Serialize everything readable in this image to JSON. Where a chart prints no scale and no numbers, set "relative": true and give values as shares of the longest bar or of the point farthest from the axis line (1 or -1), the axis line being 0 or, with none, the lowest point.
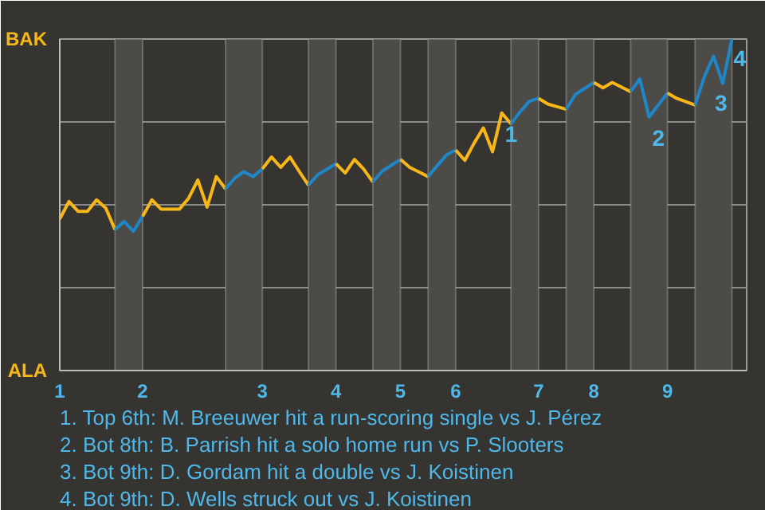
{
  "chart_data": {
    "type": "line",
    "relative": true,
    "categories": [
      "1",
      null,
      null,
      null,
      null,
      null,
      null,
      null,
      null,
      "2",
      null,
      null,
      null,
      null,
      null,
      null,
      null,
      null,
      null,
      null,
      null,
      null,
      "3",
      null,
      null,
      null,
      null,
      null,
      null,
      null,
      "4",
      null,
      null,
      null,
      null,
      null,
      null,
      "5",
      null,
      null,
      null,
      null,
      null,
      "6",
      null,
      null,
      null,
      null,
      null,
      null,
      null,
      null,
      "7",
      null,
      null,
      null,
      null,
      null,
      "8",
      null,
      null,
      null,
      null,
      null,
      null,
      null,
      "9",
      null,
      null,
      null,
      null,
      null,
      null,
      null
    ],
    "series": [
      {
        "color": "#f7b719",
        "values": [
          0.457,
          0.51,
          0.48,
          0.48,
          0.515,
          0.49,
          0.425,
          null,
          null,
          null,
          null,
          null,
          null,
          null,
          null,
          null,
          null,
          null,
          null,
          null,
          null,
          null,
          null,
          null,
          null,
          null,
          null,
          null,
          null,
          null,
          null,
          null,
          null,
          null,
          null,
          null,
          null,
          null,
          null,
          null,
          null,
          null,
          null,
          null,
          null,
          null,
          null,
          null,
          null,
          null,
          null,
          null,
          null,
          null,
          null,
          null,
          null,
          null,
          null,
          null,
          null,
          null,
          null,
          null,
          null,
          null,
          null,
          null,
          null,
          null,
          null,
          null,
          null,
          null
        ]
      },
      {
        "color": "#1f86c7",
        "values": [
          null,
          null,
          null,
          null,
          null,
          null,
          0.425,
          0.45,
          0.42,
          0.465,
          null,
          null,
          null,
          null,
          null,
          null,
          null,
          null,
          null,
          null,
          null,
          null,
          null,
          null,
          null,
          null,
          null,
          null,
          null,
          null,
          null,
          null,
          null,
          null,
          null,
          null,
          null,
          null,
          null,
          null,
          null,
          null,
          null,
          null,
          null,
          null,
          null,
          null,
          null,
          null,
          null,
          null,
          null,
          null,
          null,
          null,
          null,
          null,
          null,
          null,
          null,
          null,
          null,
          null,
          null,
          null,
          null,
          null,
          null,
          null,
          null,
          null,
          null,
          null
        ]
      },
      {
        "color": "#f7b719",
        "values": [
          null,
          null,
          null,
          null,
          null,
          null,
          null,
          null,
          null,
          0.465,
          0.515,
          0.487,
          0.487,
          0.487,
          0.52,
          0.575,
          0.493,
          0.585,
          0.548,
          null,
          null,
          null,
          null,
          null,
          null,
          null,
          null,
          null,
          null,
          null,
          null,
          null,
          null,
          null,
          null,
          null,
          null,
          null,
          null,
          null,
          null,
          null,
          null,
          null,
          null,
          null,
          null,
          null,
          null,
          null,
          null,
          null,
          null,
          null,
          null,
          null,
          null,
          null,
          null,
          null,
          null,
          null,
          null,
          null,
          null,
          null,
          null,
          null,
          null,
          null,
          null,
          null,
          null,
          null
        ]
      },
      {
        "color": "#1f86c7",
        "values": [
          null,
          null,
          null,
          null,
          null,
          null,
          null,
          null,
          null,
          null,
          null,
          null,
          null,
          null,
          null,
          null,
          null,
          null,
          0.548,
          0.58,
          0.6,
          0.585,
          0.608,
          null,
          null,
          null,
          null,
          null,
          null,
          null,
          null,
          null,
          null,
          null,
          null,
          null,
          null,
          null,
          null,
          null,
          null,
          null,
          null,
          null,
          null,
          null,
          null,
          null,
          null,
          null,
          null,
          null,
          null,
          null,
          null,
          null,
          null,
          null,
          null,
          null,
          null,
          null,
          null,
          null,
          null,
          null,
          null,
          null,
          null,
          null,
          null,
          null,
          null,
          null
        ]
      },
      {
        "color": "#f7b719",
        "values": [
          null,
          null,
          null,
          null,
          null,
          null,
          null,
          null,
          null,
          null,
          null,
          null,
          null,
          null,
          null,
          null,
          null,
          null,
          null,
          null,
          null,
          null,
          0.608,
          0.644,
          0.613,
          0.644,
          0.601,
          0.559,
          null,
          null,
          null,
          null,
          null,
          null,
          null,
          null,
          null,
          null,
          null,
          null,
          null,
          null,
          null,
          null,
          null,
          null,
          null,
          null,
          null,
          null,
          null,
          null,
          null,
          null,
          null,
          null,
          null,
          null,
          null,
          null,
          null,
          null,
          null,
          null,
          null,
          null,
          null,
          null,
          null,
          null,
          null,
          null,
          null,
          null
        ]
      },
      {
        "color": "#1f86c7",
        "values": [
          null,
          null,
          null,
          null,
          null,
          null,
          null,
          null,
          null,
          null,
          null,
          null,
          null,
          null,
          null,
          null,
          null,
          null,
          null,
          null,
          null,
          null,
          null,
          null,
          null,
          null,
          null,
          0.559,
          0.59,
          0.607,
          0.624,
          null,
          null,
          null,
          null,
          null,
          null,
          null,
          null,
          null,
          null,
          null,
          null,
          null,
          null,
          null,
          null,
          null,
          null,
          null,
          null,
          null,
          null,
          null,
          null,
          null,
          null,
          null,
          null,
          null,
          null,
          null,
          null,
          null,
          null,
          null,
          null,
          null,
          null,
          null,
          null,
          null,
          null,
          null
        ]
      },
      {
        "color": "#f7b719",
        "values": [
          null,
          null,
          null,
          null,
          null,
          null,
          null,
          null,
          null,
          null,
          null,
          null,
          null,
          null,
          null,
          null,
          null,
          null,
          null,
          null,
          null,
          null,
          null,
          null,
          null,
          null,
          null,
          null,
          null,
          null,
          0.624,
          0.596,
          0.637,
          0.608,
          0.569,
          null,
          null,
          null,
          null,
          null,
          null,
          null,
          null,
          null,
          null,
          null,
          null,
          null,
          null,
          null,
          null,
          null,
          null,
          null,
          null,
          null,
          null,
          null,
          null,
          null,
          null,
          null,
          null,
          null,
          null,
          null,
          null,
          null,
          null,
          null,
          null,
          null,
          null,
          null
        ]
      },
      {
        "color": "#1f86c7",
        "values": [
          null,
          null,
          null,
          null,
          null,
          null,
          null,
          null,
          null,
          null,
          null,
          null,
          null,
          null,
          null,
          null,
          null,
          null,
          null,
          null,
          null,
          null,
          null,
          null,
          null,
          null,
          null,
          null,
          null,
          null,
          null,
          null,
          null,
          null,
          0.569,
          0.601,
          0.619,
          0.637,
          null,
          null,
          null,
          null,
          null,
          null,
          null,
          null,
          null,
          null,
          null,
          null,
          null,
          null,
          null,
          null,
          null,
          null,
          null,
          null,
          null,
          null,
          null,
          null,
          null,
          null,
          null,
          null,
          null,
          null,
          null,
          null,
          null,
          null,
          null,
          null
        ]
      },
      {
        "color": "#f7b719",
        "values": [
          null,
          null,
          null,
          null,
          null,
          null,
          null,
          null,
          null,
          null,
          null,
          null,
          null,
          null,
          null,
          null,
          null,
          null,
          null,
          null,
          null,
          null,
          null,
          null,
          null,
          null,
          null,
          null,
          null,
          null,
          null,
          null,
          null,
          null,
          null,
          null,
          null,
          0.637,
          0.613,
          0.599,
          0.585,
          null,
          null,
          null,
          null,
          null,
          null,
          null,
          null,
          null,
          null,
          null,
          null,
          null,
          null,
          null,
          null,
          null,
          null,
          null,
          null,
          null,
          null,
          null,
          null,
          null,
          null,
          null,
          null,
          null,
          null,
          null,
          null,
          null
        ]
      },
      {
        "color": "#1f86c7",
        "values": [
          null,
          null,
          null,
          null,
          null,
          null,
          null,
          null,
          null,
          null,
          null,
          null,
          null,
          null,
          null,
          null,
          null,
          null,
          null,
          null,
          null,
          null,
          null,
          null,
          null,
          null,
          null,
          null,
          null,
          null,
          null,
          null,
          null,
          null,
          null,
          null,
          null,
          null,
          null,
          null,
          0.585,
          0.618,
          0.65,
          0.665,
          null,
          null,
          null,
          null,
          null,
          null,
          null,
          null,
          null,
          null,
          null,
          null,
          null,
          null,
          null,
          null,
          null,
          null,
          null,
          null,
          null,
          null,
          null,
          null,
          null,
          null,
          null,
          null,
          null,
          null
        ]
      },
      {
        "color": "#f7b719",
        "values": [
          null,
          null,
          null,
          null,
          null,
          null,
          null,
          null,
          null,
          null,
          null,
          null,
          null,
          null,
          null,
          null,
          null,
          null,
          null,
          null,
          null,
          null,
          null,
          null,
          null,
          null,
          null,
          null,
          null,
          null,
          null,
          null,
          null,
          null,
          null,
          null,
          null,
          null,
          null,
          null,
          null,
          null,
          null,
          0.665,
          0.634,
          0.686,
          0.732,
          0.66,
          0.777,
          0.744,
          null,
          null,
          null,
          null,
          null,
          null,
          null,
          null,
          null,
          null,
          null,
          null,
          null,
          null,
          null,
          null,
          null,
          null,
          null,
          null,
          null,
          null,
          null,
          null
        ]
      },
      {
        "color": "#1f86c7",
        "values": [
          null,
          null,
          null,
          null,
          null,
          null,
          null,
          null,
          null,
          null,
          null,
          null,
          null,
          null,
          null,
          null,
          null,
          null,
          null,
          null,
          null,
          null,
          null,
          null,
          null,
          null,
          null,
          null,
          null,
          null,
          null,
          null,
          null,
          null,
          null,
          null,
          null,
          null,
          null,
          null,
          null,
          null,
          null,
          null,
          null,
          null,
          null,
          null,
          null,
          0.744,
          0.781,
          0.812,
          0.821,
          null,
          null,
          null,
          null,
          null,
          null,
          null,
          null,
          null,
          null,
          null,
          null,
          null,
          null,
          null,
          null,
          null,
          null,
          null,
          null,
          null
        ]
      },
      {
        "color": "#f7b719",
        "values": [
          null,
          null,
          null,
          null,
          null,
          null,
          null,
          null,
          null,
          null,
          null,
          null,
          null,
          null,
          null,
          null,
          null,
          null,
          null,
          null,
          null,
          null,
          null,
          null,
          null,
          null,
          null,
          null,
          null,
          null,
          null,
          null,
          null,
          null,
          null,
          null,
          null,
          null,
          null,
          null,
          null,
          null,
          null,
          null,
          null,
          null,
          null,
          null,
          null,
          null,
          null,
          null,
          0.821,
          0.804,
          0.796,
          0.788,
          null,
          null,
          null,
          null,
          null,
          null,
          null,
          null,
          null,
          null,
          null,
          null,
          null,
          null,
          null,
          null,
          null,
          null
        ]
      },
      {
        "color": "#1f86c7",
        "values": [
          null,
          null,
          null,
          null,
          null,
          null,
          null,
          null,
          null,
          null,
          null,
          null,
          null,
          null,
          null,
          null,
          null,
          null,
          null,
          null,
          null,
          null,
          null,
          null,
          null,
          null,
          null,
          null,
          null,
          null,
          null,
          null,
          null,
          null,
          null,
          null,
          null,
          null,
          null,
          null,
          null,
          null,
          null,
          null,
          null,
          null,
          null,
          null,
          null,
          null,
          null,
          null,
          null,
          null,
          null,
          0.788,
          0.833,
          0.851,
          0.869,
          null,
          null,
          null,
          null,
          null,
          null,
          null,
          null,
          null,
          null,
          null,
          null,
          null,
          null,
          null
        ]
      },
      {
        "color": "#f7b719",
        "values": [
          null,
          null,
          null,
          null,
          null,
          null,
          null,
          null,
          null,
          null,
          null,
          null,
          null,
          null,
          null,
          null,
          null,
          null,
          null,
          null,
          null,
          null,
          null,
          null,
          null,
          null,
          null,
          null,
          null,
          null,
          null,
          null,
          null,
          null,
          null,
          null,
          null,
          null,
          null,
          null,
          null,
          null,
          null,
          null,
          null,
          null,
          null,
          null,
          null,
          null,
          null,
          null,
          null,
          null,
          null,
          null,
          null,
          null,
          0.869,
          0.853,
          0.869,
          0.855,
          0.841,
          null,
          null,
          null,
          null,
          null,
          null,
          null,
          null,
          null,
          null,
          null
        ]
      },
      {
        "color": "#1f86c7",
        "values": [
          null,
          null,
          null,
          null,
          null,
          null,
          null,
          null,
          null,
          null,
          null,
          null,
          null,
          null,
          null,
          null,
          null,
          null,
          null,
          null,
          null,
          null,
          null,
          null,
          null,
          null,
          null,
          null,
          null,
          null,
          null,
          null,
          null,
          null,
          null,
          null,
          null,
          null,
          null,
          null,
          null,
          null,
          null,
          null,
          null,
          null,
          null,
          null,
          null,
          null,
          null,
          null,
          null,
          null,
          null,
          null,
          null,
          null,
          null,
          null,
          null,
          null,
          0.841,
          0.88,
          0.765,
          0.801,
          0.837,
          null,
          null,
          null,
          null,
          null,
          null,
          null
        ]
      },
      {
        "color": "#f7b719",
        "values": [
          null,
          null,
          null,
          null,
          null,
          null,
          null,
          null,
          null,
          null,
          null,
          null,
          null,
          null,
          null,
          null,
          null,
          null,
          null,
          null,
          null,
          null,
          null,
          null,
          null,
          null,
          null,
          null,
          null,
          null,
          null,
          null,
          null,
          null,
          null,
          null,
          null,
          null,
          null,
          null,
          null,
          null,
          null,
          null,
          null,
          null,
          null,
          null,
          null,
          null,
          null,
          null,
          null,
          null,
          null,
          null,
          null,
          null,
          null,
          null,
          null,
          null,
          null,
          null,
          null,
          null,
          0.837,
          0.821,
          0.811,
          0.801,
          null,
          null,
          null,
          null
        ]
      },
      {
        "color": "#1f86c7",
        "values": [
          null,
          null,
          null,
          null,
          null,
          null,
          null,
          null,
          null,
          null,
          null,
          null,
          null,
          null,
          null,
          null,
          null,
          null,
          null,
          null,
          null,
          null,
          null,
          null,
          null,
          null,
          null,
          null,
          null,
          null,
          null,
          null,
          null,
          null,
          null,
          null,
          null,
          null,
          null,
          null,
          null,
          null,
          null,
          null,
          null,
          null,
          null,
          null,
          null,
          null,
          null,
          null,
          null,
          null,
          null,
          null,
          null,
          null,
          null,
          null,
          null,
          null,
          null,
          null,
          null,
          null,
          null,
          null,
          null,
          0.801,
          0.886,
          0.948,
          0.866,
          1.0
        ]
      }
    ],
    "grid": "y",
    "annotations": [
      "BAK",
      "ALA",
      {
        "text": "1",
        "y": 0.777
      },
      {
        "text": "2",
        "y": 0.765
      },
      {
        "text": "3",
        "y": 0.866
      },
      {
        "text": "4",
        "y": 1.0
      },
      "1. Top 6th: M. Breeuwer hit a run-scoring single vs J. Pérez",
      "2. Bot 8th: B. Parrish hit a solo home run vs P. Slooters",
      "3. Bot 9th: D. Gordam hit a double vs J. Koistinen",
      "4. Bot 9th: D. Wells struck out vs J. Koistinen"
    ]
  }
}
